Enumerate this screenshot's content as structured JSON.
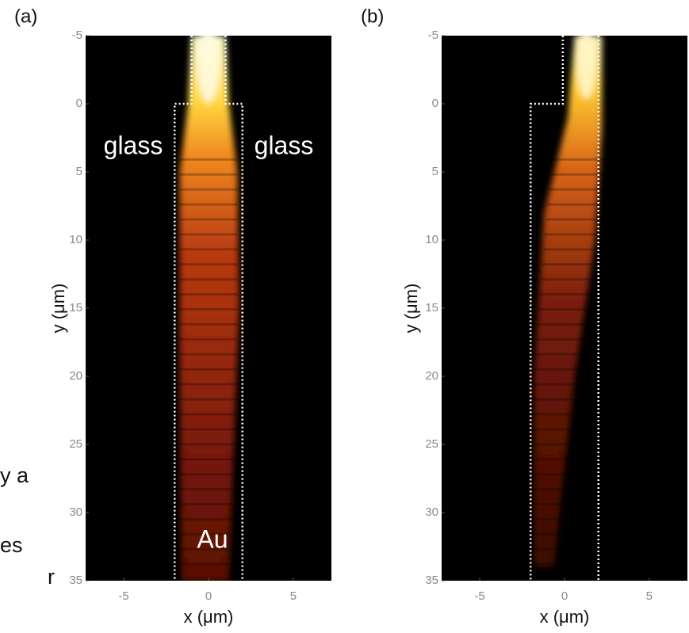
{
  "side_text": [
    "y a",
    "es",
    "r"
  ],
  "chart_data": [
    {
      "type": "heatmap",
      "panel_label": "(a)",
      "xlabel": "x (μm)",
      "ylabel": "y (μm)",
      "xlim": [
        -7.25,
        7.25
      ],
      "xticks": [
        -5,
        0,
        5
      ],
      "ylim": [
        -5,
        35
      ],
      "yticks": [
        -5,
        0,
        5,
        10,
        15,
        20,
        25,
        30,
        35
      ],
      "y_inverted": true,
      "annotations": [
        "glass",
        "glass",
        "Au"
      ]
    },
    {
      "type": "heatmap",
      "panel_label": "(b)",
      "xlabel": "x (μm)",
      "ylabel": "y (μm)",
      "xlim": [
        -7.25,
        7.25
      ],
      "xticks": [
        -5,
        0,
        5
      ],
      "ylim": [
        -5,
        35
      ],
      "yticks": [
        -5,
        0,
        5,
        10,
        15,
        20,
        25,
        30,
        35
      ],
      "y_inverted": true,
      "annotations": []
    }
  ]
}
